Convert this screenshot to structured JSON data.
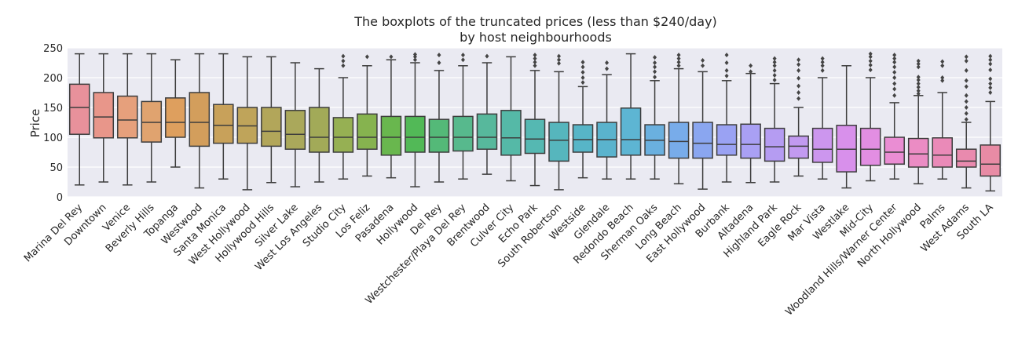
{
  "chart_data": {
    "type": "box",
    "title": "The boxplots of the truncated prices (less than $240/day)",
    "subtitle": "by host neighbourhoods",
    "xlabel": "",
    "ylabel": "Price",
    "ylim": [
      0,
      250
    ],
    "yticks": [
      "0",
      "50",
      "100",
      "150",
      "200",
      "250"
    ],
    "grid": true,
    "categories": [
      "Marina Del Rey",
      "Downtown",
      "Venice",
      "Beverly Hills",
      "Topanga",
      "Westwood",
      "Santa Monica",
      "West Hollywood",
      "Hollywood Hills",
      "Silver Lake",
      "West Los Angeles",
      "Studio City",
      "Los Feliz",
      "Pasadena",
      "Hollywood",
      "Del Rey",
      "Westchester/Playa Del Rey",
      "Brentwood",
      "Culver City",
      "Echo Park",
      "South Robertson",
      "Westside",
      "Glendale",
      "Redondo Beach",
      "Sherman Oaks",
      "Long Beach",
      "East Hollywood",
      "Burbank",
      "Altadena",
      "Highland Park",
      "Eagle Rock",
      "Mar Vista",
      "Westlake",
      "Mid-City",
      "Woodland Hills/Warner Center",
      "North Hollywood",
      "Palms",
      "West Adams",
      "South LA"
    ],
    "boxes": [
      {
        "whisker_low": 20,
        "q1": 105,
        "median": 150,
        "q3": 189,
        "whisker_high": 240,
        "outliers": []
      },
      {
        "whisker_low": 25,
        "q1": 99,
        "median": 134,
        "q3": 175,
        "whisker_high": 240,
        "outliers": []
      },
      {
        "whisker_low": 20,
        "q1": 99,
        "median": 129,
        "q3": 169,
        "whisker_high": 240,
        "outliers": []
      },
      {
        "whisker_low": 25,
        "q1": 92,
        "median": 125,
        "q3": 160,
        "whisker_high": 240,
        "outliers": []
      },
      {
        "whisker_low": 50,
        "q1": 100,
        "median": 125,
        "q3": 166,
        "whisker_high": 230,
        "outliers": []
      },
      {
        "whisker_low": 15,
        "q1": 85,
        "median": 125,
        "q3": 175,
        "whisker_high": 240,
        "outliers": []
      },
      {
        "whisker_low": 30,
        "q1": 90,
        "median": 120,
        "q3": 155,
        "whisker_high": 240,
        "outliers": []
      },
      {
        "whisker_low": 12,
        "q1": 90,
        "median": 119,
        "q3": 150,
        "whisker_high": 235,
        "outliers": []
      },
      {
        "whisker_low": 24,
        "q1": 85,
        "median": 110,
        "q3": 150,
        "whisker_high": 235,
        "outliers": []
      },
      {
        "whisker_low": 17,
        "q1": 80,
        "median": 105,
        "q3": 145,
        "whisker_high": 225,
        "outliers": []
      },
      {
        "whisker_low": 25,
        "q1": 75,
        "median": 100,
        "q3": 150,
        "whisker_high": 215,
        "outliers": []
      },
      {
        "whisker_low": 30,
        "q1": 75,
        "median": 100,
        "q3": 133,
        "whisker_high": 200,
        "outliers": [
          220,
          228,
          236
        ]
      },
      {
        "whisker_low": 35,
        "q1": 80,
        "median": 100,
        "q3": 139,
        "whisker_high": 220,
        "outliers": [
          235
        ]
      },
      {
        "whisker_low": 32,
        "q1": 70,
        "median": 100,
        "q3": 135,
        "whisker_high": 230,
        "outliers": [
          235
        ]
      },
      {
        "whisker_low": 17,
        "q1": 75,
        "median": 100,
        "q3": 135,
        "whisker_high": 225,
        "outliers": [
          230,
          235,
          239
        ]
      },
      {
        "whisker_low": 25,
        "q1": 75,
        "median": 100,
        "q3": 130,
        "whisker_high": 212,
        "outliers": [
          225,
          238
        ]
      },
      {
        "whisker_low": 30,
        "q1": 77,
        "median": 100,
        "q3": 135,
        "whisker_high": 220,
        "outliers": [
          230,
          238
        ]
      },
      {
        "whisker_low": 38,
        "q1": 80,
        "median": 100,
        "q3": 139,
        "whisker_high": 225,
        "outliers": [
          236
        ]
      },
      {
        "whisker_low": 27,
        "q1": 70,
        "median": 99,
        "q3": 145,
        "whisker_high": 235,
        "outliers": []
      },
      {
        "whisker_low": 19,
        "q1": 73,
        "median": 97,
        "q3": 130,
        "whisker_high": 212,
        "outliers": [
          220,
          226,
          232,
          238
        ]
      },
      {
        "whisker_low": 12,
        "q1": 60,
        "median": 95,
        "q3": 125,
        "whisker_high": 210,
        "outliers": [
          224,
          230,
          236
        ]
      },
      {
        "whisker_low": 32,
        "q1": 75,
        "median": 96,
        "q3": 121,
        "whisker_high": 185,
        "outliers": [
          192,
          200,
          209,
          218,
          226
        ]
      },
      {
        "whisker_low": 30,
        "q1": 67,
        "median": 96,
        "q3": 125,
        "whisker_high": 205,
        "outliers": [
          215,
          225
        ]
      },
      {
        "whisker_low": 30,
        "q1": 70,
        "median": 96,
        "q3": 149,
        "whisker_high": 240,
        "outliers": []
      },
      {
        "whisker_low": 30,
        "q1": 70,
        "median": 95,
        "q3": 121,
        "whisker_high": 195,
        "outliers": [
          201,
          210,
          218,
          225,
          234
        ]
      },
      {
        "whisker_low": 22,
        "q1": 65,
        "median": 93,
        "q3": 125,
        "whisker_high": 215,
        "outliers": [
          220,
          226,
          232,
          238
        ]
      },
      {
        "whisker_low": 13,
        "q1": 65,
        "median": 90,
        "q3": 125,
        "whisker_high": 210,
        "outliers": [
          220,
          229
        ]
      },
      {
        "whisker_low": 25,
        "q1": 70,
        "median": 88,
        "q3": 121,
        "whisker_high": 195,
        "outliers": [
          203,
          212,
          225,
          238
        ]
      },
      {
        "whisker_low": 24,
        "q1": 65,
        "median": 88,
        "q3": 122,
        "whisker_high": 207,
        "outliers": [
          210,
          220
        ]
      },
      {
        "whisker_low": 25,
        "q1": 60,
        "median": 84,
        "q3": 115,
        "whisker_high": 190,
        "outliers": [
          196,
          204,
          212,
          220,
          226,
          232
        ]
      },
      {
        "whisker_low": 35,
        "q1": 65,
        "median": 85,
        "q3": 102,
        "whisker_high": 150,
        "outliers": [
          165,
          175,
          186,
          199,
          212,
          222,
          230
        ]
      },
      {
        "whisker_low": 30,
        "q1": 58,
        "median": 80,
        "q3": 115,
        "whisker_high": 200,
        "outliers": [
          212,
          220,
          226,
          232
        ]
      },
      {
        "whisker_low": 15,
        "q1": 42,
        "median": 80,
        "q3": 120,
        "whisker_high": 220,
        "outliers": []
      },
      {
        "whisker_low": 27,
        "q1": 53,
        "median": 80,
        "q3": 115,
        "whisker_high": 200,
        "outliers": [
          213,
          221,
          228,
          235,
          240
        ]
      },
      {
        "whisker_low": 30,
        "q1": 55,
        "median": 75,
        "q3": 100,
        "whisker_high": 158,
        "outliers": [
          170,
          181,
          190,
          200,
          209,
          218,
          226,
          232,
          238
        ]
      },
      {
        "whisker_low": 22,
        "q1": 50,
        "median": 72,
        "q3": 98,
        "whisker_high": 170,
        "outliers": [
          173,
          178,
          184,
          190,
          196,
          201,
          218,
          223,
          228
        ]
      },
      {
        "whisker_low": 30,
        "q1": 50,
        "median": 70,
        "q3": 99,
        "whisker_high": 175,
        "outliers": [
          195,
          200,
          220,
          227
        ]
      },
      {
        "whisker_low": 15,
        "q1": 50,
        "median": 60,
        "q3": 80,
        "whisker_high": 125,
        "outliers": [
          130,
          140,
          150,
          160,
          170,
          185,
          195,
          212,
          228,
          235
        ]
      },
      {
        "whisker_low": 10,
        "q1": 35,
        "median": 55,
        "q3": 87,
        "whisker_high": 160,
        "outliers": [
          175,
          183,
          190,
          198,
          213,
          223,
          230,
          236
        ]
      }
    ],
    "colors": [
      "#e8919b",
      "#e8968a",
      "#e6a07c",
      "#e0a36f",
      "#de9f5e",
      "#d39e5c",
      "#c8a15a",
      "#bfa45a",
      "#b2a65a",
      "#aaa85b",
      "#a2aa58",
      "#96b053",
      "#86b34f",
      "#69b74e",
      "#52b957",
      "#54b978",
      "#57b98d",
      "#57b89c",
      "#55b9a7",
      "#55b8b2",
      "#56b6bd",
      "#57b5c7",
      "#5ab3cd",
      "#5db5d3",
      "#6ab0df",
      "#78acea",
      "#8aa6f0",
      "#9aa2f3",
      "#a9a0f4",
      "#b59cf2",
      "#c29af0",
      "#cc96ee",
      "#d890eb",
      "#e28ee2",
      "#ea8dd3",
      "#eb8cc4",
      "#ea8ab8",
      "#e98aae",
      "#e88ba5"
    ]
  }
}
